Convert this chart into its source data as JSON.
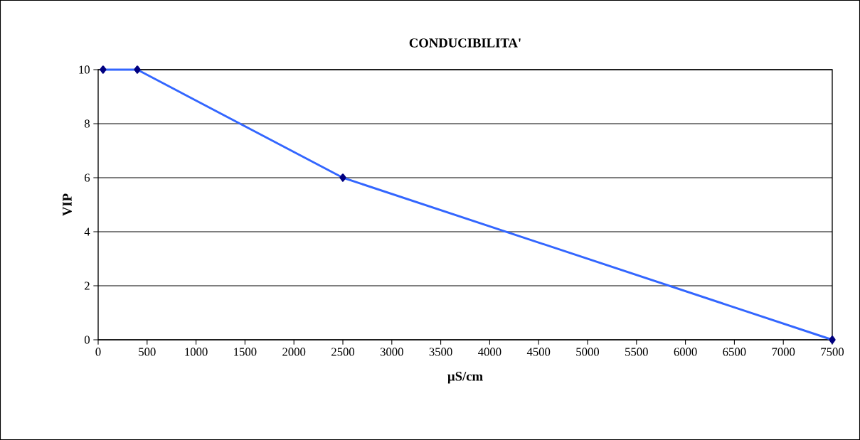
{
  "chart_data": {
    "type": "line",
    "title": "CONDUCIBILITA'",
    "xlabel": "µS/cm",
    "ylabel": "VIP",
    "x": [
      50,
      400,
      2500,
      7500
    ],
    "series": [
      {
        "color": "#3366ff",
        "values": [
          10,
          10,
          6,
          0
        ]
      }
    ],
    "marker": "diamond",
    "line_style": "solid",
    "grid": "y",
    "xlim": [
      0,
      7500
    ],
    "ylim": [
      0,
      10
    ],
    "xticks": [
      0,
      500,
      1000,
      1500,
      2000,
      2500,
      3000,
      3500,
      4000,
      4500,
      5000,
      5500,
      6000,
      6500,
      7000,
      7500
    ],
    "yticks": [
      0,
      2,
      4,
      6,
      8,
      10
    ]
  }
}
